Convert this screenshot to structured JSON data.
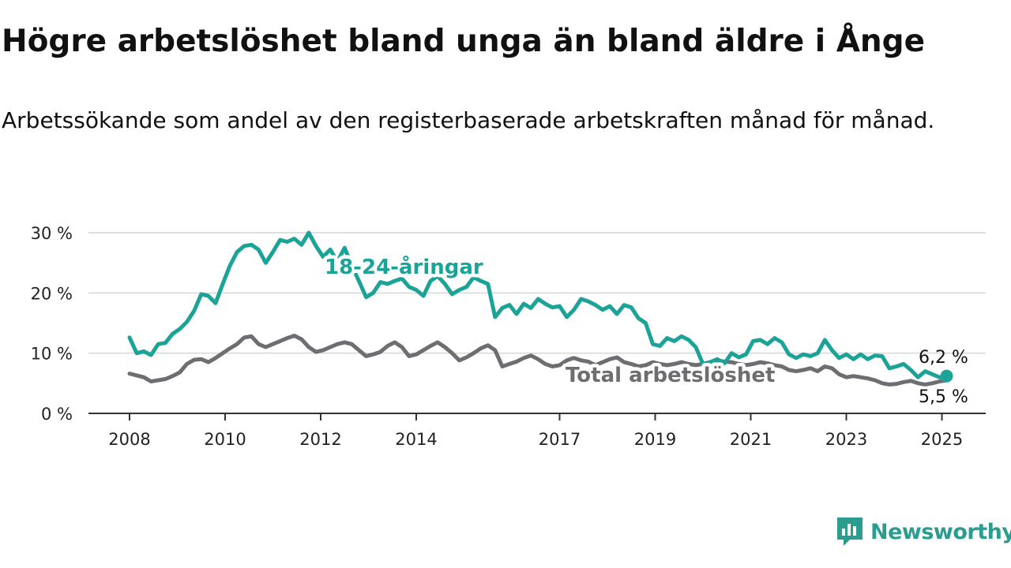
{
  "title": "Högre arbetslöshet bland unga än bland äldre i Ånge",
  "subtitle": "Arbetssökande som andel av den registerbaserade arbetskraften månad för månad.",
  "logo": {
    "name": "Newsworthy"
  },
  "colors": {
    "youth": "#1aa396",
    "total": "#6e6e72",
    "grid": "#d6d6d6",
    "axis": "#333333"
  },
  "chart_data": {
    "type": "line",
    "y_ticks": [
      0,
      10,
      20,
      30
    ],
    "y_tick_labels": [
      "0 %",
      "10 %",
      "20 %",
      "30 %"
    ],
    "x_ticks": [
      2008,
      2010,
      2012,
      2014,
      2017,
      2019,
      2021,
      2023,
      2025
    ],
    "x_tick_labels": [
      "2008",
      "2010",
      "2012",
      "2014",
      "2017",
      "2019",
      "2021",
      "2023",
      "2025"
    ],
    "ylim": [
      0,
      30
    ],
    "xlim": [
      2007.8,
      2025.9
    ],
    "grid": true,
    "series": [
      {
        "name": "18-24-åringar",
        "label": "18-24-åringar",
        "end_label": "6,2 %",
        "points": [
          [
            2008.0,
            12.6
          ],
          [
            2008.15,
            10.0
          ],
          [
            2008.3,
            10.3
          ],
          [
            2008.45,
            9.7
          ],
          [
            2008.6,
            11.5
          ],
          [
            2008.75,
            11.7
          ],
          [
            2008.9,
            13.2
          ],
          [
            2009.05,
            14.0
          ],
          [
            2009.2,
            15.2
          ],
          [
            2009.35,
            17.0
          ],
          [
            2009.5,
            19.8
          ],
          [
            2009.65,
            19.5
          ],
          [
            2009.8,
            18.3
          ],
          [
            2009.95,
            21.5
          ],
          [
            2010.1,
            24.5
          ],
          [
            2010.25,
            26.8
          ],
          [
            2010.4,
            27.8
          ],
          [
            2010.55,
            28.0
          ],
          [
            2010.7,
            27.2
          ],
          [
            2010.85,
            25.0
          ],
          [
            2011.0,
            26.8
          ],
          [
            2011.15,
            28.8
          ],
          [
            2011.3,
            28.5
          ],
          [
            2011.45,
            29.0
          ],
          [
            2011.6,
            28.0
          ],
          [
            2011.75,
            30.0
          ],
          [
            2011.9,
            27.8
          ],
          [
            2012.05,
            26.0
          ],
          [
            2012.2,
            27.2
          ],
          [
            2012.35,
            25.2
          ],
          [
            2012.5,
            27.5
          ],
          [
            2012.65,
            24.5
          ],
          [
            2012.8,
            22.0
          ],
          [
            2012.95,
            19.3
          ],
          [
            2013.1,
            20.0
          ],
          [
            2013.25,
            21.8
          ],
          [
            2013.4,
            21.5
          ],
          [
            2013.55,
            22.0
          ],
          [
            2013.7,
            22.4
          ],
          [
            2013.85,
            21.0
          ],
          [
            2014.0,
            20.5
          ],
          [
            2014.15,
            19.5
          ],
          [
            2014.3,
            22.0
          ],
          [
            2014.45,
            22.8
          ],
          [
            2014.6,
            21.5
          ],
          [
            2014.75,
            19.8
          ],
          [
            2014.9,
            20.5
          ],
          [
            2015.05,
            21.0
          ],
          [
            2015.2,
            22.6
          ],
          [
            2015.35,
            22.0
          ],
          [
            2015.5,
            21.5
          ],
          [
            2015.65,
            16.0
          ],
          [
            2015.8,
            17.5
          ],
          [
            2015.95,
            18.0
          ],
          [
            2016.1,
            16.5
          ],
          [
            2016.25,
            18.2
          ],
          [
            2016.4,
            17.5
          ],
          [
            2016.55,
            19.0
          ],
          [
            2016.7,
            18.2
          ],
          [
            2016.85,
            17.6
          ],
          [
            2017.0,
            17.8
          ],
          [
            2017.15,
            16.0
          ],
          [
            2017.3,
            17.2
          ],
          [
            2017.45,
            19.0
          ],
          [
            2017.6,
            18.6
          ],
          [
            2017.75,
            18.0
          ],
          [
            2017.9,
            17.2
          ],
          [
            2018.05,
            17.8
          ],
          [
            2018.2,
            16.5
          ],
          [
            2018.35,
            18.0
          ],
          [
            2018.5,
            17.6
          ],
          [
            2018.65,
            15.8
          ],
          [
            2018.8,
            15.0
          ],
          [
            2018.95,
            11.5
          ],
          [
            2019.1,
            11.2
          ],
          [
            2019.25,
            12.5
          ],
          [
            2019.4,
            12.0
          ],
          [
            2019.55,
            12.8
          ],
          [
            2019.7,
            12.2
          ],
          [
            2019.85,
            11.0
          ],
          [
            2020.0,
            8.2
          ],
          [
            2020.15,
            8.5
          ],
          [
            2020.3,
            9.0
          ],
          [
            2020.45,
            8.3
          ],
          [
            2020.6,
            10.0
          ],
          [
            2020.75,
            9.3
          ],
          [
            2020.9,
            9.8
          ],
          [
            2021.05,
            12.0
          ],
          [
            2021.2,
            12.2
          ],
          [
            2021.35,
            11.5
          ],
          [
            2021.5,
            12.5
          ],
          [
            2021.65,
            11.8
          ],
          [
            2021.8,
            9.8
          ],
          [
            2021.95,
            9.2
          ],
          [
            2022.1,
            9.8
          ],
          [
            2022.25,
            9.5
          ],
          [
            2022.4,
            10.0
          ],
          [
            2022.55,
            12.2
          ],
          [
            2022.7,
            10.5
          ],
          [
            2022.85,
            9.2
          ],
          [
            2023.0,
            9.8
          ],
          [
            2023.15,
            9.0
          ],
          [
            2023.3,
            9.8
          ],
          [
            2023.45,
            9.0
          ],
          [
            2023.6,
            9.6
          ],
          [
            2023.75,
            9.5
          ],
          [
            2023.9,
            7.5
          ],
          [
            2024.05,
            7.8
          ],
          [
            2024.2,
            8.2
          ],
          [
            2024.35,
            7.2
          ],
          [
            2024.5,
            6.0
          ],
          [
            2024.65,
            7.0
          ],
          [
            2024.8,
            6.5
          ],
          [
            2024.95,
            6.0
          ],
          [
            2025.1,
            6.2
          ]
        ]
      },
      {
        "name": "Total arbetslöshet",
        "label": "Total arbetslöshet",
        "end_label": "5,5 %",
        "points": [
          [
            2008.0,
            6.6
          ],
          [
            2008.15,
            6.3
          ],
          [
            2008.3,
            6.0
          ],
          [
            2008.45,
            5.3
          ],
          [
            2008.6,
            5.5
          ],
          [
            2008.75,
            5.7
          ],
          [
            2008.9,
            6.2
          ],
          [
            2009.05,
            6.8
          ],
          [
            2009.2,
            8.2
          ],
          [
            2009.35,
            8.9
          ],
          [
            2009.5,
            9.0
          ],
          [
            2009.65,
            8.5
          ],
          [
            2009.8,
            9.2
          ],
          [
            2009.95,
            10.0
          ],
          [
            2010.1,
            10.8
          ],
          [
            2010.25,
            11.5
          ],
          [
            2010.4,
            12.6
          ],
          [
            2010.55,
            12.8
          ],
          [
            2010.7,
            11.5
          ],
          [
            2010.85,
            11.0
          ],
          [
            2011.0,
            11.5
          ],
          [
            2011.15,
            12.0
          ],
          [
            2011.3,
            12.5
          ],
          [
            2011.45,
            12.9
          ],
          [
            2011.6,
            12.3
          ],
          [
            2011.75,
            11.0
          ],
          [
            2011.9,
            10.2
          ],
          [
            2012.05,
            10.5
          ],
          [
            2012.2,
            11.0
          ],
          [
            2012.35,
            11.5
          ],
          [
            2012.5,
            11.8
          ],
          [
            2012.65,
            11.5
          ],
          [
            2012.8,
            10.5
          ],
          [
            2012.95,
            9.5
          ],
          [
            2013.1,
            9.8
          ],
          [
            2013.25,
            10.2
          ],
          [
            2013.4,
            11.2
          ],
          [
            2013.55,
            11.8
          ],
          [
            2013.7,
            11.0
          ],
          [
            2013.85,
            9.5
          ],
          [
            2014.0,
            9.8
          ],
          [
            2014.15,
            10.5
          ],
          [
            2014.3,
            11.2
          ],
          [
            2014.45,
            11.8
          ],
          [
            2014.6,
            11.0
          ],
          [
            2014.75,
            10.0
          ],
          [
            2014.9,
            8.8
          ],
          [
            2015.05,
            9.3
          ],
          [
            2015.2,
            10.0
          ],
          [
            2015.35,
            10.8
          ],
          [
            2015.5,
            11.3
          ],
          [
            2015.65,
            10.5
          ],
          [
            2015.8,
            7.8
          ],
          [
            2015.95,
            8.2
          ],
          [
            2016.1,
            8.6
          ],
          [
            2016.25,
            9.2
          ],
          [
            2016.4,
            9.6
          ],
          [
            2016.55,
            9.0
          ],
          [
            2016.7,
            8.2
          ],
          [
            2016.85,
            7.8
          ],
          [
            2017.0,
            8.0
          ],
          [
            2017.15,
            8.8
          ],
          [
            2017.3,
            9.2
          ],
          [
            2017.45,
            8.8
          ],
          [
            2017.6,
            8.6
          ],
          [
            2017.75,
            8.0
          ],
          [
            2017.9,
            8.5
          ],
          [
            2018.05,
            9.0
          ],
          [
            2018.2,
            9.3
          ],
          [
            2018.35,
            8.5
          ],
          [
            2018.5,
            8.2
          ],
          [
            2018.65,
            7.8
          ],
          [
            2018.8,
            8.0
          ],
          [
            2018.95,
            8.5
          ],
          [
            2019.1,
            8.2
          ],
          [
            2019.25,
            8.0
          ],
          [
            2019.4,
            8.2
          ],
          [
            2019.55,
            8.5
          ],
          [
            2019.7,
            8.2
          ],
          [
            2019.85,
            8.0
          ],
          [
            2020.0,
            8.2
          ],
          [
            2020.15,
            8.5
          ],
          [
            2020.3,
            8.8
          ],
          [
            2020.45,
            8.6
          ],
          [
            2020.6,
            8.5
          ],
          [
            2020.75,
            8.2
          ],
          [
            2020.9,
            8.0
          ],
          [
            2021.05,
            8.2
          ],
          [
            2021.2,
            8.5
          ],
          [
            2021.35,
            8.3
          ],
          [
            2021.5,
            8.0
          ],
          [
            2021.65,
            7.8
          ],
          [
            2021.8,
            7.2
          ],
          [
            2021.95,
            7.0
          ],
          [
            2022.1,
            7.2
          ],
          [
            2022.25,
            7.5
          ],
          [
            2022.4,
            7.0
          ],
          [
            2022.55,
            7.8
          ],
          [
            2022.7,
            7.5
          ],
          [
            2022.85,
            6.5
          ],
          [
            2023.0,
            6.0
          ],
          [
            2023.15,
            6.2
          ],
          [
            2023.3,
            6.0
          ],
          [
            2023.45,
            5.8
          ],
          [
            2023.6,
            5.5
          ],
          [
            2023.75,
            5.0
          ],
          [
            2023.9,
            4.8
          ],
          [
            2024.05,
            4.9
          ],
          [
            2024.2,
            5.2
          ],
          [
            2024.35,
            5.4
          ],
          [
            2024.5,
            5.0
          ],
          [
            2024.65,
            4.8
          ],
          [
            2024.8,
            5.0
          ],
          [
            2024.95,
            5.3
          ],
          [
            2025.1,
            5.5
          ]
        ]
      }
    ]
  }
}
